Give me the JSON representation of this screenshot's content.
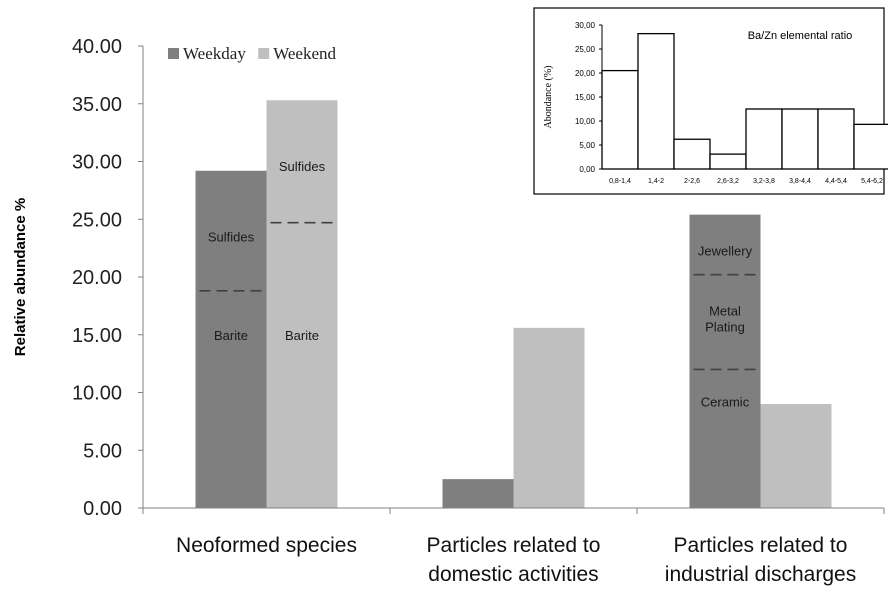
{
  "chart_data": [
    {
      "type": "bar",
      "title": "",
      "xlabel": "",
      "ylabel": "Relative abundance %",
      "ylim": [
        0,
        40
      ],
      "ytick_labels": [
        "0.00",
        "5.00",
        "10.00",
        "15.00",
        "20.00",
        "25.00",
        "30.00",
        "35.00",
        "40.00"
      ],
      "categories": [
        [
          "Neoformed species"
        ],
        [
          "Particles related to",
          "domestic activities"
        ],
        [
          "Particles related to",
          "industrial discharges"
        ]
      ],
      "series": [
        {
          "name": "Weekday",
          "color": "#7f7f7f",
          "values": [
            29.2,
            2.5,
            25.4
          ]
        },
        {
          "name": "Weekend",
          "color": "#bfbfbf",
          "values": [
            35.3,
            15.6,
            9.0
          ]
        }
      ],
      "legend": "top-left",
      "grid": false,
      "segment_dividers": [
        {
          "category": 0,
          "series": 0,
          "at": 18.8
        },
        {
          "category": 0,
          "series": 1,
          "at": 24.7
        },
        {
          "category": 2,
          "series": 0,
          "at": 20.2
        },
        {
          "category": 2,
          "series": 0,
          "at": 12.0
        }
      ],
      "segment_labels": [
        {
          "category": 0,
          "series": 0,
          "text": [
            "Sulfides"
          ],
          "y": 23.5
        },
        {
          "category": 0,
          "series": 0,
          "text": [
            "Barite"
          ],
          "y": 15.0
        },
        {
          "category": 0,
          "series": 1,
          "text": [
            "Sulfides"
          ],
          "y": 29.6
        },
        {
          "category": 0,
          "series": 1,
          "text": [
            "Barite"
          ],
          "y": 15.0
        },
        {
          "category": 2,
          "series": 0,
          "text": [
            "Jewellery"
          ],
          "y": 22.3
        },
        {
          "category": 2,
          "series": 0,
          "text": [
            "Metal",
            "Plating"
          ],
          "y": 16.4
        },
        {
          "category": 2,
          "series": 0,
          "text": [
            "Ceramic"
          ],
          "y": 9.2
        }
      ]
    },
    {
      "type": "bar",
      "title": "Ba/Zn elemental  ratio",
      "xlabel": "",
      "ylabel": "Abondance (%)",
      "ylim": [
        0,
        30
      ],
      "ytick_labels": [
        "0,00",
        "5,00",
        "10,00",
        "15,00",
        "20,00",
        "25,00",
        "30,00"
      ],
      "categories": [
        "0,8-1,4",
        "1,4-2",
        "2-2,6",
        "2,6-3,2",
        "3,2-3,8",
        "3,8-4,4",
        "4,4-5,4",
        "5,4-6,2"
      ],
      "values": [
        20.5,
        28.2,
        6.2,
        3.1,
        12.5,
        12.5,
        12.5,
        9.3
      ],
      "grid": false
    }
  ]
}
